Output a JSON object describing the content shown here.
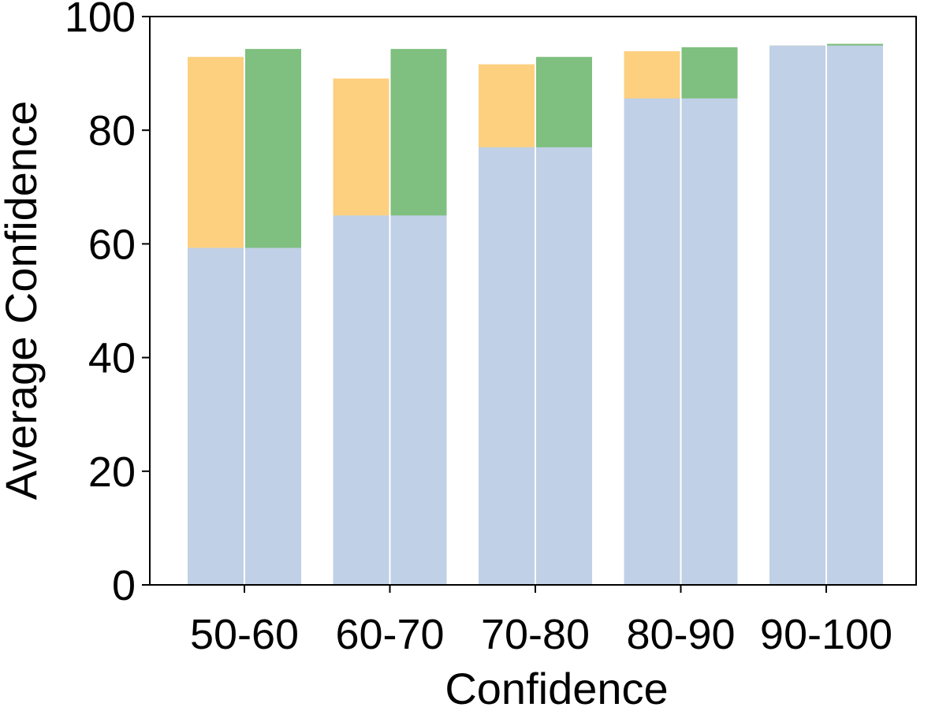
{
  "chart_data": {
    "type": "bar",
    "stacked_overlay": true,
    "xlabel": "Confidence",
    "ylabel": "Average Confidence",
    "ylim": [
      0,
      100
    ],
    "yticks": [
      0,
      20,
      40,
      60,
      80,
      100
    ],
    "categories": [
      "50-60",
      "60-70",
      "70-80",
      "80-90",
      "90-100"
    ],
    "grid": false,
    "legend": "none",
    "groups": [
      {
        "base": [
          59.3,
          65.0,
          77.0,
          85.6,
          94.9
        ],
        "top": [
          92.9,
          89.1,
          91.6,
          93.9,
          94.9
        ],
        "base_color": "#c0d0e6",
        "top_color": "#fdd07f"
      },
      {
        "base": [
          59.3,
          65.0,
          77.0,
          85.6,
          94.9
        ],
        "top": [
          94.3,
          94.3,
          92.9,
          94.6,
          95.2
        ],
        "base_color": "#c0d0e6",
        "top_color": "#7fbf7f"
      }
    ]
  }
}
